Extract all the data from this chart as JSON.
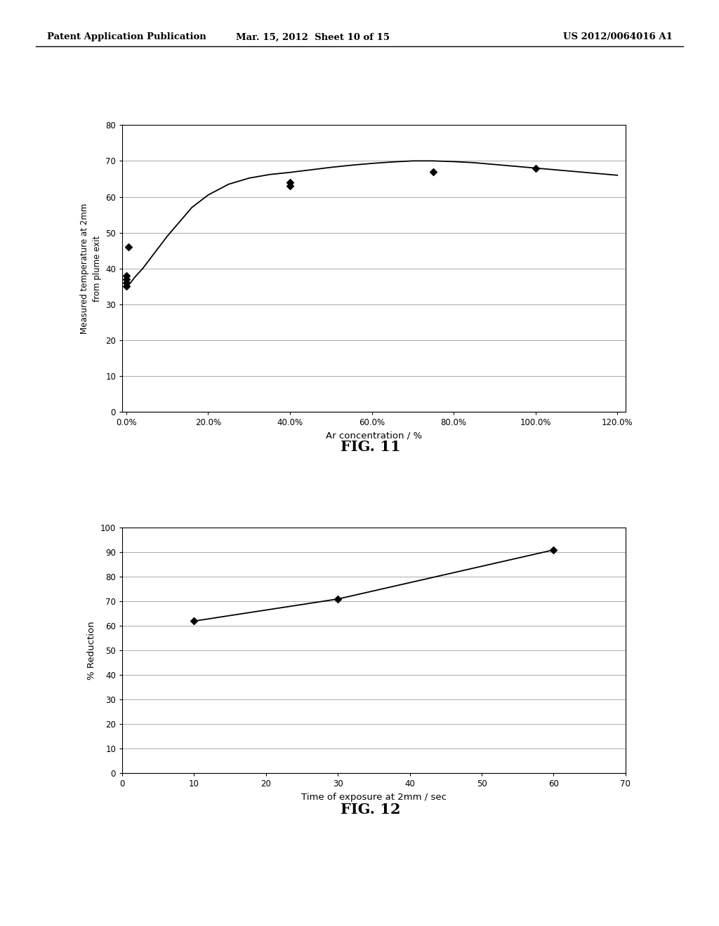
{
  "fig11": {
    "scatter_x": [
      0.0,
      0.0,
      0.0,
      0.0,
      0.005,
      0.4,
      0.4,
      0.75,
      1.0
    ],
    "scatter_y": [
      35,
      36,
      37,
      38,
      46,
      64,
      63,
      67,
      68
    ],
    "curve_x": [
      0.0,
      0.01,
      0.02,
      0.04,
      0.06,
      0.08,
      0.1,
      0.13,
      0.16,
      0.2,
      0.25,
      0.3,
      0.35,
      0.4,
      0.45,
      0.5,
      0.55,
      0.6,
      0.65,
      0.7,
      0.75,
      0.8,
      0.85,
      0.9,
      0.95,
      1.0,
      1.05,
      1.1,
      1.15,
      1.2
    ],
    "curve_y": [
      34.5,
      36,
      37.5,
      40,
      43,
      46,
      49,
      53,
      57,
      60.5,
      63.5,
      65.2,
      66.2,
      66.8,
      67.5,
      68.2,
      68.8,
      69.3,
      69.7,
      70.0,
      70.0,
      69.8,
      69.5,
      69.0,
      68.5,
      68.0,
      67.5,
      67.0,
      66.5,
      66.0
    ],
    "xlabel": "Ar concentration / %",
    "ylabel": "Measured temperature at 2mm\nfrom plume exit",
    "xlim": [
      -0.01,
      1.22
    ],
    "ylim": [
      0,
      80
    ],
    "xticks": [
      0.0,
      0.2,
      0.4,
      0.6,
      0.8,
      1.0,
      1.2
    ],
    "xticklabels": [
      "0.0%",
      "20.0%",
      "40.0%",
      "60.0%",
      "80.0%",
      "100.0%",
      "120.0%"
    ],
    "yticks": [
      0,
      10,
      20,
      30,
      40,
      50,
      60,
      70,
      80
    ],
    "title": "FIG. 11"
  },
  "fig12": {
    "scatter_x": [
      10,
      30,
      60
    ],
    "scatter_y": [
      62,
      71,
      91
    ],
    "xlabel": "Time of exposure at 2mm / sec",
    "ylabel": "% Reduction",
    "xlim": [
      0,
      70
    ],
    "ylim": [
      0,
      100
    ],
    "xticks": [
      0,
      10,
      20,
      30,
      40,
      50,
      60,
      70
    ],
    "yticks": [
      0,
      10,
      20,
      30,
      40,
      50,
      60,
      70,
      80,
      90,
      100
    ],
    "title": "FIG. 12"
  },
  "header_left": "Patent Application Publication",
  "header_center": "Mar. 15, 2012  Sheet 10 of 15",
  "header_right": "US 2012/0064016 A1",
  "background_color": "#ffffff",
  "line_color": "#000000",
  "marker_color": "#000000",
  "grid_color": "#aaaaaa"
}
